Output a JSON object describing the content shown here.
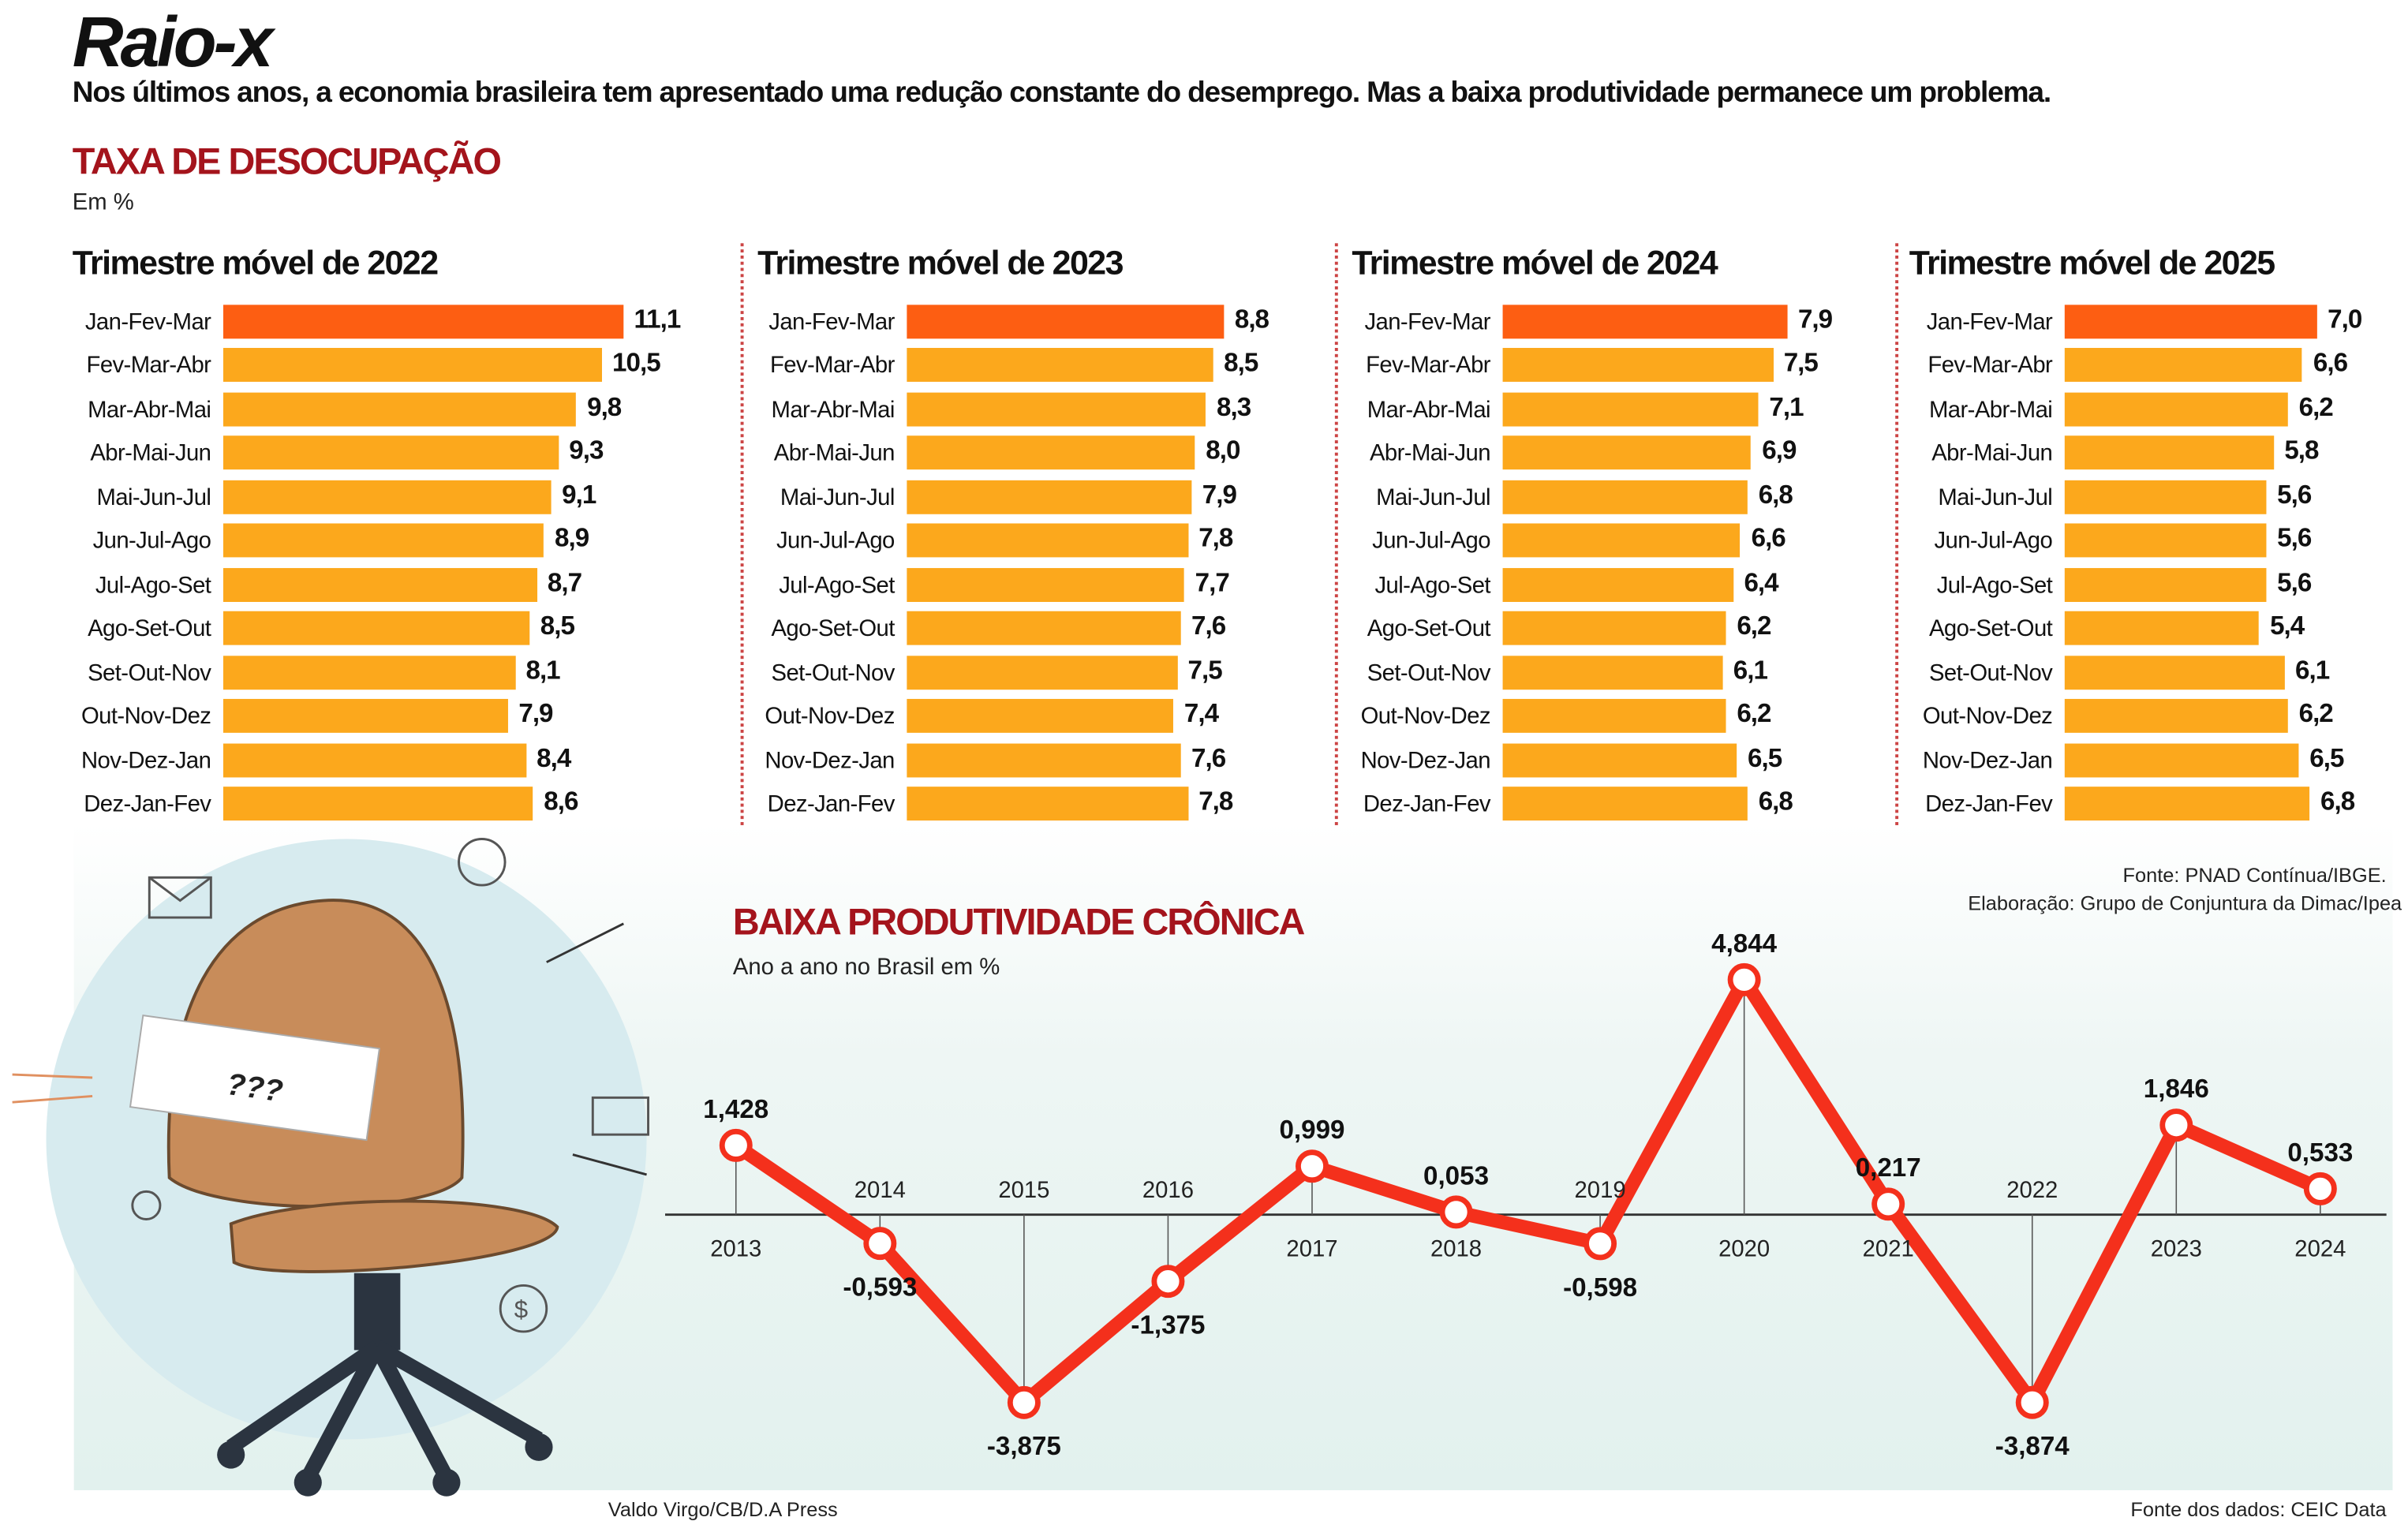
{
  "header": {
    "title": "Raio-x",
    "subtitle": "Nos últimos anos, a economia brasileira tem apresentado uma redução constante do desemprego. Mas a baixa produtividade permanece um problema."
  },
  "unemployment": {
    "title": "TAXA DE DESOCUPAÇÃO",
    "unit": "Em %",
    "source": "Fonte: PNAD Contínua/IBGE.",
    "elaboration": "Elaboração: Grupo de Conjuntura da Dimac/Ipea"
  },
  "productivity": {
    "title": "BAIXA PRODUTIVIDADE CRÔNICA",
    "unit": "Ano a ano no Brasil em %",
    "source": "Fonte dos dados: CEIC Data"
  },
  "illustration": {
    "sign_text": "???",
    "credit": "Valdo Virgo/CB/D.A Press"
  },
  "colors": {
    "highlight_bar": "#fd5e12",
    "bar": "#fca81c",
    "line": "#f4301c",
    "title_red": "#a4141c"
  },
  "chart_data": [
    {
      "type": "bar",
      "orientation": "horizontal",
      "title": "Trimestre móvel de 2022",
      "categories": [
        "Jan-Fev-Mar",
        "Fev-Mar-Abr",
        "Mar-Abr-Mai",
        "Abr-Mai-Jun",
        "Mai-Jun-Jul",
        "Jun-Jul-Ago",
        "Jul-Ago-Set",
        "Ago-Set-Out",
        "Set-Out-Nov",
        "Out-Nov-Dez",
        "Nov-Dez-Jan",
        "Dez-Jan-Fev"
      ],
      "values": [
        11.1,
        10.5,
        9.8,
        9.3,
        9.1,
        8.9,
        8.7,
        8.5,
        8.1,
        7.9,
        8.4,
        8.6
      ],
      "labels": [
        "11,1",
        "10,5",
        "9,8",
        "9,3",
        "9,1",
        "8,9",
        "8,7",
        "8,5",
        "8,1",
        "7,9",
        "8,4",
        "8,6"
      ]
    },
    {
      "type": "bar",
      "orientation": "horizontal",
      "title": "Trimestre móvel de 2023",
      "categories": [
        "Jan-Fev-Mar",
        "Fev-Mar-Abr",
        "Mar-Abr-Mai",
        "Abr-Mai-Jun",
        "Mai-Jun-Jul",
        "Jun-Jul-Ago",
        "Jul-Ago-Set",
        "Ago-Set-Out",
        "Set-Out-Nov",
        "Out-Nov-Dez",
        "Nov-Dez-Jan",
        "Dez-Jan-Fev"
      ],
      "values": [
        8.8,
        8.5,
        8.3,
        8.0,
        7.9,
        7.8,
        7.7,
        7.6,
        7.5,
        7.4,
        7.6,
        7.8
      ],
      "labels": [
        "8,8",
        "8,5",
        "8,3",
        "8,0",
        "7,9",
        "7,8",
        "7,7",
        "7,6",
        "7,5",
        "7,4",
        "7,6",
        "7,8"
      ]
    },
    {
      "type": "bar",
      "orientation": "horizontal",
      "title": "Trimestre móvel de 2024",
      "categories": [
        "Jan-Fev-Mar",
        "Fev-Mar-Abr",
        "Mar-Abr-Mai",
        "Abr-Mai-Jun",
        "Mai-Jun-Jul",
        "Jun-Jul-Ago",
        "Jul-Ago-Set",
        "Ago-Set-Out",
        "Set-Out-Nov",
        "Out-Nov-Dez",
        "Nov-Dez-Jan",
        "Dez-Jan-Fev"
      ],
      "values": [
        7.9,
        7.5,
        7.1,
        6.9,
        6.8,
        6.6,
        6.4,
        6.2,
        6.1,
        6.2,
        6.5,
        6.8
      ],
      "labels": [
        "7,9",
        "7,5",
        "7,1",
        "6,9",
        "6,8",
        "6,6",
        "6,4",
        "6,2",
        "6,1",
        "6,2",
        "6,5",
        "6,8"
      ]
    },
    {
      "type": "bar",
      "orientation": "horizontal",
      "title": "Trimestre móvel de 2025",
      "categories": [
        "Jan-Fev-Mar",
        "Fev-Mar-Abr",
        "Mar-Abr-Mai",
        "Abr-Mai-Jun",
        "Mai-Jun-Jul",
        "Jun-Jul-Ago",
        "Jul-Ago-Set",
        "Ago-Set-Out",
        "Set-Out-Nov",
        "Out-Nov-Dez",
        "Nov-Dez-Jan",
        "Dez-Jan-Fev"
      ],
      "values": [
        7.0,
        6.6,
        6.2,
        5.8,
        5.6,
        5.6,
        5.6,
        5.4,
        6.1,
        6.2,
        6.5,
        6.8
      ],
      "labels": [
        "7,0",
        "6,6",
        "6,2",
        "5,8",
        "5,6",
        "5,6",
        "5,6",
        "5,4",
        "6,1",
        "6,2",
        "6,5",
        "6,8"
      ]
    },
    {
      "type": "line",
      "title": "BAIXA PRODUTIVIDADE CRÔNICA",
      "subtitle": "Ano a ano no Brasil em %",
      "x": [
        "2013",
        "2014",
        "2015",
        "2016",
        "2017",
        "2018",
        "2019",
        "2020",
        "2021",
        "2022",
        "2023",
        "2024"
      ],
      "values": [
        1.428,
        -0.593,
        -3.875,
        -1.375,
        0.999,
        0.053,
        -0.598,
        4.844,
        0.217,
        -3.874,
        1.846,
        0.533
      ],
      "labels": [
        "1,428",
        "-0,593",
        "-3,875",
        "-1,375",
        "0,999",
        "0,053",
        "-0,598",
        "4,844",
        "0,217",
        "-3,874",
        "1,846",
        "0,533"
      ],
      "grid": false
    }
  ]
}
